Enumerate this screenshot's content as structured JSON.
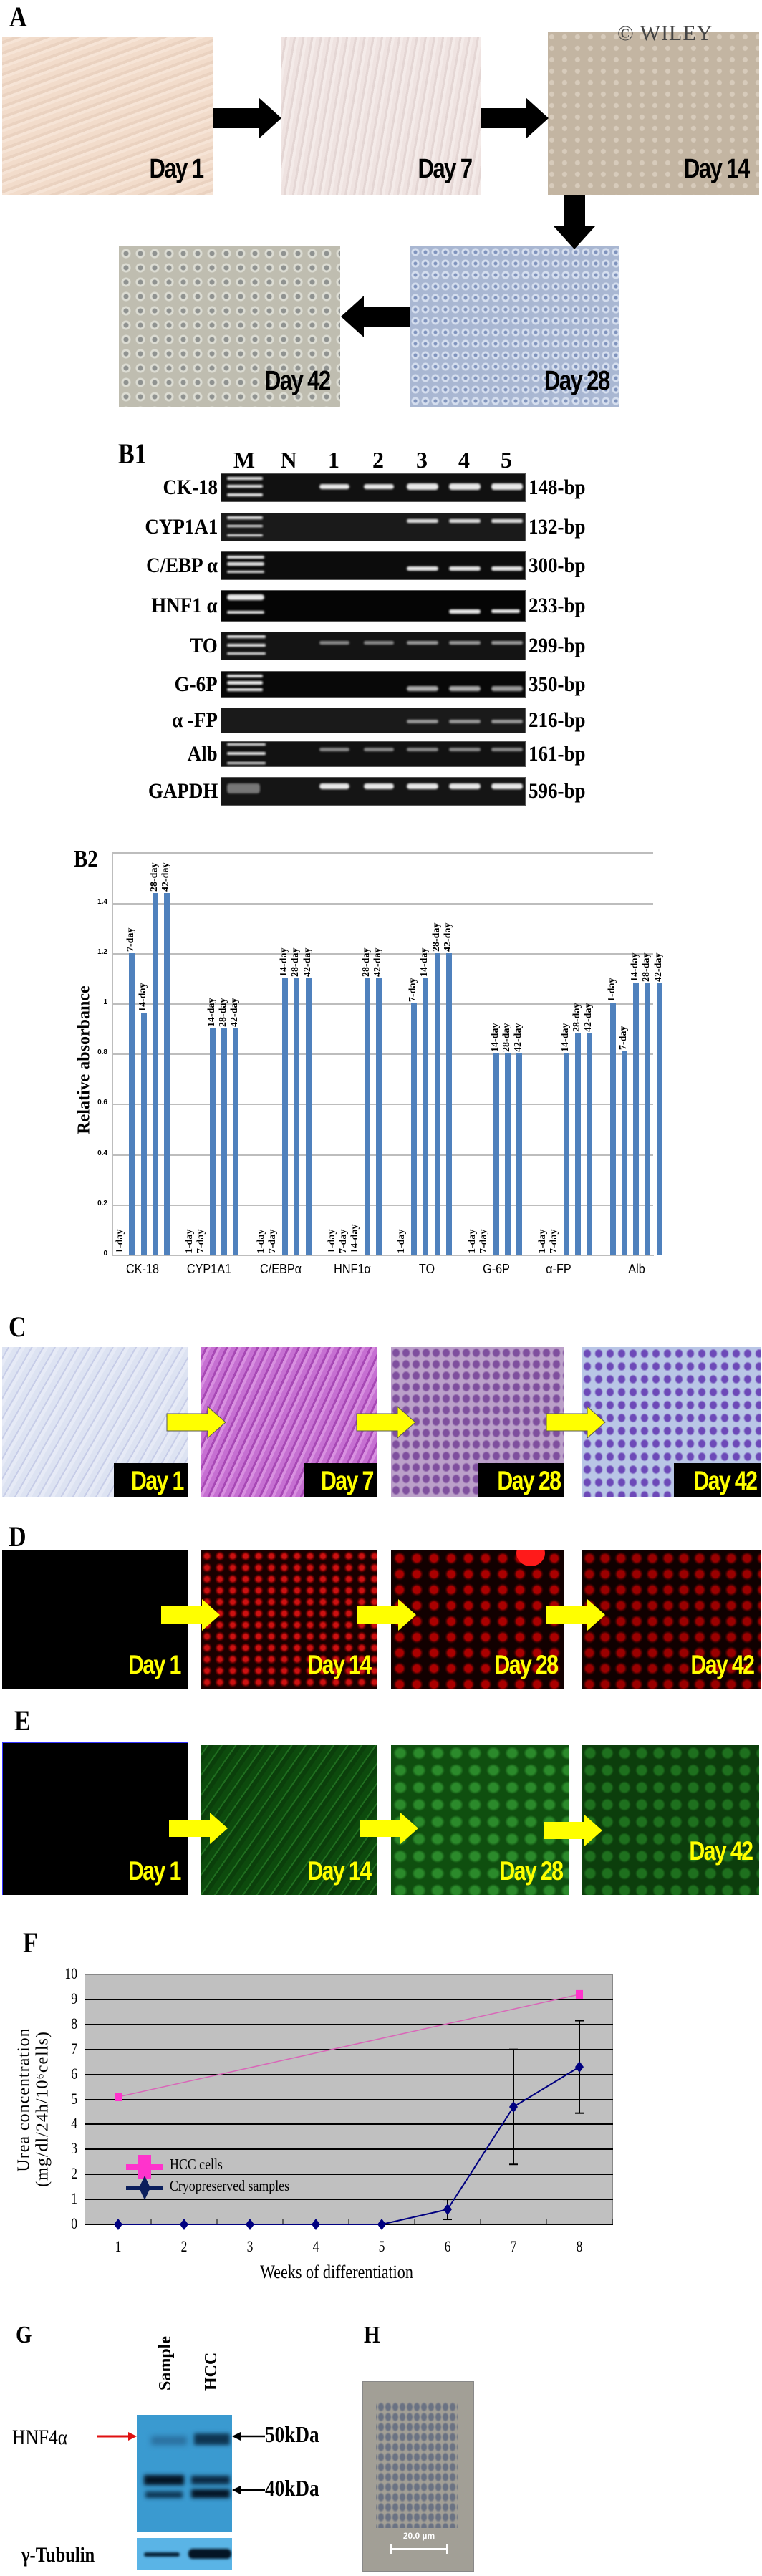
{
  "watermark": "© WILEY",
  "panels": {
    "A": {
      "label": "A",
      "images": [
        {
          "day": "Day 1",
          "color": "#efd9c8"
        },
        {
          "day": "Day 7",
          "color": "#ece0de"
        },
        {
          "day": "Day 14",
          "color": "#c7b9a6"
        },
        {
          "day": "Day 28",
          "color": "#a7b5cf"
        },
        {
          "day": "Day 42",
          "color": "#c1bfb2"
        }
      ]
    },
    "B1": {
      "label": "B1",
      "lanes": [
        "M",
        "N",
        "1",
        "2",
        "3",
        "4",
        "5"
      ],
      "rows": [
        {
          "gene": "CK-18",
          "size": "148-bp"
        },
        {
          "gene": "CYP1A1",
          "size": "132-bp"
        },
        {
          "gene": "C/EBP α",
          "size": "300-bp"
        },
        {
          "gene": "HNF1 α",
          "size": "233-bp"
        },
        {
          "gene": "TO",
          "size": "299-bp"
        },
        {
          "gene": "G-6P",
          "size": "350-bp"
        },
        {
          "gene": "α -FP",
          "size": "216-bp"
        },
        {
          "gene": "Alb",
          "size": "161-bp"
        },
        {
          "gene": "GAPDH",
          "size": "596-bp"
        }
      ]
    },
    "B2": {
      "label": "B2"
    },
    "C": {
      "label": "C",
      "days": [
        "Day 1",
        "Day 7",
        "Day 28",
        "Day 42"
      ]
    },
    "D": {
      "label": "D",
      "days": [
        "Day 1",
        "Day 14",
        "Day 28",
        "Day 42"
      ]
    },
    "E": {
      "label": "E",
      "days": [
        "Day 1",
        "Day 14",
        "Day 28",
        "Day 42"
      ]
    },
    "F": {
      "label": "F"
    },
    "G": {
      "label": "G",
      "lanes": [
        "Sample",
        "HCC"
      ],
      "protein": "HNF4α",
      "markers": [
        "50kDa",
        "40kDa"
      ],
      "loading_control": "γ-Tubulin"
    },
    "H": {
      "label": "H",
      "scale_bar": "20.0 µm"
    }
  },
  "chart_data": [
    {
      "type": "bar",
      "title": "B2",
      "xlabel": "",
      "ylabel": "Relative absorbance",
      "ylim": [
        0,
        1.6
      ],
      "yticks": [
        "0",
        "0.2",
        "0.4",
        "0.6",
        "0.8",
        "1",
        "1.2",
        "1.4"
      ],
      "grid": true,
      "categories": [
        "CK-18",
        "CYP1A1",
        "C/EBPα",
        "HNF1α",
        "TO",
        "G-6P",
        "α-FP",
        "Alb"
      ],
      "series_labels": [
        "1-day",
        "7-day",
        "14-day",
        "28-day",
        "42-day"
      ],
      "series": [
        {
          "name": "1-day",
          "values": [
            0,
            0,
            0,
            0,
            0,
            0,
            0,
            1.0
          ]
        },
        {
          "name": "7-day",
          "values": [
            1.2,
            0,
            0,
            0,
            1.0,
            0,
            0,
            0.81
          ]
        },
        {
          "name": "14-day",
          "values": [
            0.96,
            0.9,
            1.1,
            0,
            1.1,
            0.8,
            0.8,
            1.08
          ]
        },
        {
          "name": "28-day",
          "values": [
            1.44,
            0.9,
            1.1,
            1.1,
            1.2,
            0.8,
            0.88,
            1.08
          ]
        },
        {
          "name": "42-day",
          "values": [
            1.44,
            0.9,
            1.1,
            1.1,
            1.2,
            0.8,
            0.88,
            1.08
          ]
        }
      ],
      "bar_color": "#4f81bd"
    },
    {
      "type": "line",
      "title": "F",
      "xlabel": "Weeks of differentiation",
      "ylabel": "Urea concentration (mg/dl/24h/10⁶cells)",
      "ylabel_line1": "Urea concentration",
      "ylabel_line2": "(mg/dl/24h/10⁶cells)",
      "x": [
        1,
        2,
        3,
        4,
        5,
        6,
        7,
        8
      ],
      "ylim": [
        0,
        10
      ],
      "yticks": [
        "0",
        "1",
        "2",
        "3",
        "4",
        "5",
        "6",
        "7",
        "8",
        "9",
        "10"
      ],
      "grid": true,
      "legend_position": "lower-left inside",
      "series": [
        {
          "name": "HCC cells",
          "color": "#ff33cc",
          "marker": "square",
          "x": [
            1,
            8
          ],
          "values": [
            5.1,
            9.2
          ]
        },
        {
          "name": "Cryopreserved samples",
          "color": "#000080",
          "marker": "diamond",
          "x": [
            1,
            2,
            3,
            4,
            5,
            6,
            7,
            8
          ],
          "values": [
            0,
            0,
            0,
            0,
            0,
            0.6,
            4.7,
            6.3
          ],
          "error": [
            0,
            0,
            0,
            0,
            0,
            0.4,
            2.3,
            1.85
          ]
        }
      ]
    }
  ]
}
